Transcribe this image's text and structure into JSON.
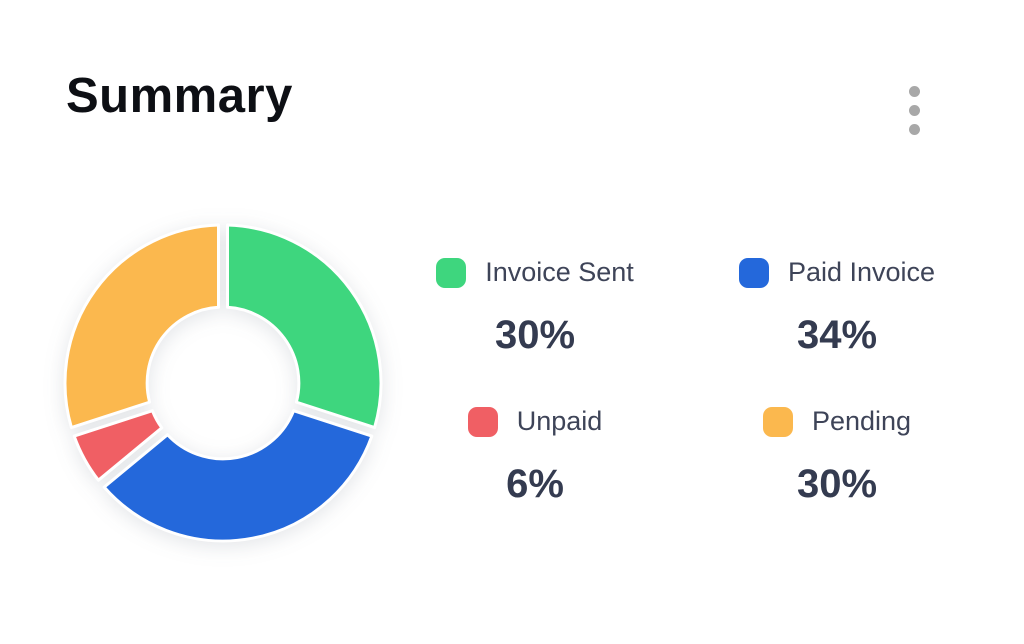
{
  "card": {
    "title": "Summary",
    "menu_icon": "kebab-menu-icon"
  },
  "colors": {
    "background": "#ffffff",
    "title_text": "#0d0f14",
    "label_text": "#3e4458",
    "percent_text": "#343b50",
    "menu_dots": "#a8a8a8",
    "slice_separator": "#ffffff"
  },
  "chart_data": {
    "type": "pie",
    "variant": "donut",
    "title": "Summary",
    "unit": "%",
    "slices": [
      {
        "label": "Invoice Sent",
        "value": 30,
        "pct_label": "30%",
        "color": "#3ED67E"
      },
      {
        "label": "Paid Invoice",
        "value": 34,
        "pct_label": "34%",
        "color": "#2468DB"
      },
      {
        "label": "Unpaid",
        "value": 6,
        "pct_label": "6%",
        "color": "#F05F64"
      },
      {
        "label": "Pending",
        "value": 30,
        "pct_label": "30%",
        "color": "#FBB84E"
      }
    ],
    "start_angle_deg": 0,
    "direction": "clockwise",
    "inner_radius_ratio": 0.48,
    "grid": "off",
    "legend_position": "right",
    "legend_layout": "2x2-grid"
  }
}
